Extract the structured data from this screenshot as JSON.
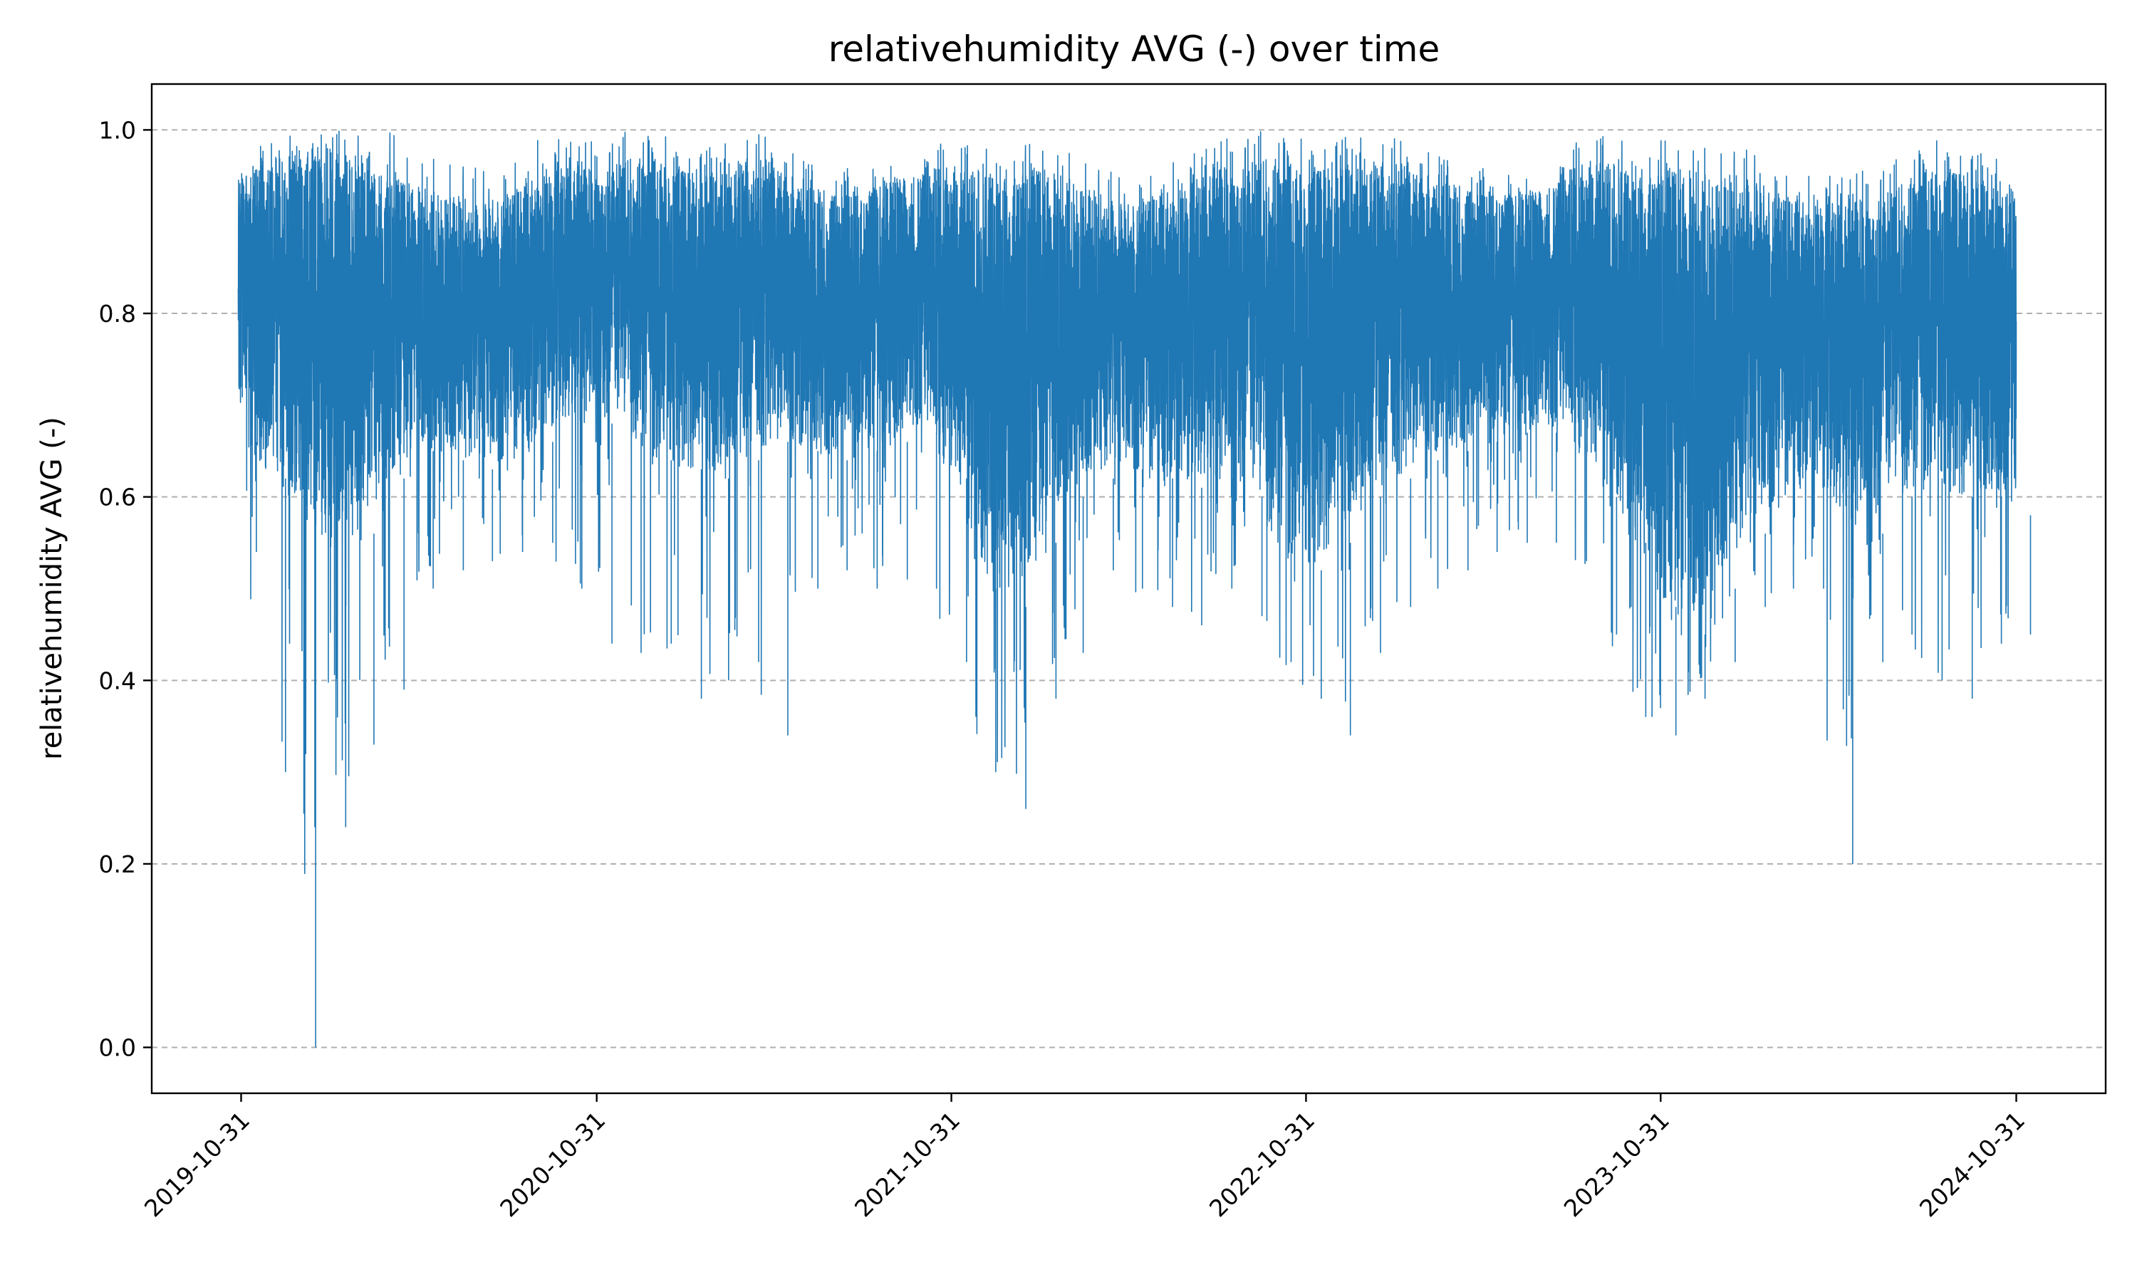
{
  "chart_data": {
    "type": "line",
    "title": "relativehumidity AVG (-) over time",
    "xlabel": "",
    "ylabel": "relativehumidity AVG (-)",
    "xlim": [
      "2019-07-31",
      "2025-01-31"
    ],
    "ylim": [
      -0.05,
      1.05
    ],
    "x_ticks": [
      "2019-10-31",
      "2020-10-31",
      "2021-10-31",
      "2022-10-31",
      "2023-10-31",
      "2024-10-31"
    ],
    "y_ticks": [
      "0.0",
      "0.2",
      "0.4",
      "0.6",
      "0.8",
      "1.0"
    ],
    "grid": "y-dashed",
    "legend": "none",
    "series": [
      {
        "color": "#1f77b4",
        "envelope_monthly": {
          "dates": [
            "2019-11-01",
            "2019-12-01",
            "2020-01-01",
            "2020-02-01",
            "2020-03-01",
            "2020-04-01",
            "2020-05-01",
            "2020-06-01",
            "2020-07-01",
            "2020-08-01",
            "2020-09-01",
            "2020-10-01",
            "2020-11-01",
            "2020-12-01",
            "2021-01-01",
            "2021-02-01",
            "2021-03-01",
            "2021-04-01",
            "2021-05-01",
            "2021-06-01",
            "2021-07-01",
            "2021-08-01",
            "2021-09-01",
            "2021-10-01",
            "2021-11-01",
            "2021-12-01",
            "2022-01-01",
            "2022-02-01",
            "2022-03-01",
            "2022-04-01",
            "2022-05-01",
            "2022-06-01",
            "2022-07-01",
            "2022-08-01",
            "2022-09-01",
            "2022-10-01",
            "2022-11-01",
            "2022-12-01",
            "2023-01-01",
            "2023-02-01",
            "2023-03-01",
            "2023-04-01",
            "2023-05-01",
            "2023-06-01",
            "2023-07-01",
            "2023-08-01",
            "2023-09-01",
            "2023-10-01",
            "2023-11-01",
            "2023-12-01",
            "2024-01-01",
            "2024-02-01",
            "2024-03-01",
            "2024-04-01",
            "2024-05-01",
            "2024-06-01",
            "2024-07-01",
            "2024-08-01",
            "2024-09-01",
            "2024-10-01",
            "2024-10-31"
          ],
          "max": [
            0.98,
            1.0,
            1.0,
            1.0,
            1.0,
            1.0,
            0.98,
            0.97,
            0.96,
            0.97,
            0.99,
            0.99,
            0.99,
            1.0,
            1.0,
            0.98,
            0.99,
            1.0,
            0.99,
            0.97,
            0.96,
            0.96,
            0.98,
            0.99,
            0.99,
            0.99,
            0.98,
            0.99,
            0.98,
            0.96,
            0.95,
            0.96,
            0.97,
            0.99,
            1.0,
            1.0,
            0.99,
            1.0,
            1.0,
            0.99,
            0.98,
            0.97,
            0.96,
            0.96,
            0.97,
            0.99,
            1.0,
            1.0,
            0.99,
            0.99,
            0.98,
            0.98,
            0.96,
            0.95,
            0.95,
            0.96,
            0.97,
            0.99,
            0.99,
            0.98,
            0.97
          ],
          "upper_typical": [
            0.95,
            0.97,
            0.98,
            0.98,
            0.96,
            0.95,
            0.94,
            0.93,
            0.92,
            0.93,
            0.95,
            0.96,
            0.96,
            0.97,
            0.97,
            0.96,
            0.96,
            0.97,
            0.96,
            0.94,
            0.93,
            0.93,
            0.95,
            0.96,
            0.96,
            0.96,
            0.96,
            0.96,
            0.95,
            0.93,
            0.92,
            0.93,
            0.94,
            0.96,
            0.97,
            0.97,
            0.96,
            0.97,
            0.97,
            0.96,
            0.95,
            0.94,
            0.93,
            0.93,
            0.94,
            0.96,
            0.97,
            0.96,
            0.96,
            0.96,
            0.95,
            0.95,
            0.93,
            0.92,
            0.92,
            0.93,
            0.94,
            0.96,
            0.96,
            0.95,
            0.94
          ],
          "lower_typical": [
            0.66,
            0.62,
            0.58,
            0.55,
            0.56,
            0.62,
            0.65,
            0.64,
            0.63,
            0.64,
            0.66,
            0.68,
            0.68,
            0.67,
            0.64,
            0.63,
            0.62,
            0.64,
            0.66,
            0.65,
            0.64,
            0.65,
            0.66,
            0.67,
            0.62,
            0.5,
            0.48,
            0.55,
            0.6,
            0.62,
            0.63,
            0.62,
            0.61,
            0.62,
            0.6,
            0.55,
            0.52,
            0.55,
            0.6,
            0.62,
            0.64,
            0.65,
            0.66,
            0.67,
            0.67,
            0.66,
            0.6,
            0.55,
            0.48,
            0.45,
            0.5,
            0.56,
            0.6,
            0.62,
            0.58,
            0.56,
            0.6,
            0.62,
            0.6,
            0.6,
            0.58
          ],
          "min": [
            0.54,
            0.3,
            0.0,
            0.24,
            0.33,
            0.39,
            0.5,
            0.52,
            0.53,
            0.54,
            0.55,
            0.5,
            0.44,
            0.43,
            0.44,
            0.38,
            0.4,
            0.42,
            0.34,
            0.5,
            0.52,
            0.5,
            0.51,
            0.5,
            0.42,
            0.3,
            0.26,
            0.38,
            0.43,
            0.52,
            0.5,
            0.48,
            0.46,
            0.5,
            0.47,
            0.42,
            0.38,
            0.34,
            0.43,
            0.48,
            0.5,
            0.52,
            0.54,
            0.55,
            0.55,
            0.53,
            0.45,
            0.36,
            0.34,
            0.38,
            0.42,
            0.48,
            0.5,
            0.5,
            0.2,
            0.42,
            0.45,
            0.4,
            0.38,
            0.44,
            0.45
          ]
        }
      }
    ]
  }
}
